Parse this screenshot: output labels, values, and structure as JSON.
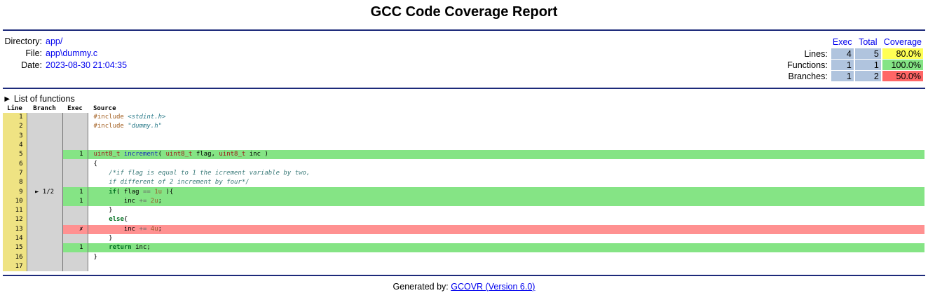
{
  "title": "GCC Code Coverage Report",
  "info": {
    "directory_label": "Directory:",
    "directory": "app/",
    "file_label": "File:",
    "file": "app\\dummy.c",
    "date_label": "Date:",
    "date": "2023-08-30 21:04:35"
  },
  "summary": {
    "headers": {
      "exec": "Exec",
      "total": "Total",
      "coverage": "Coverage"
    },
    "lines": {
      "label": "Lines:",
      "exec": "4",
      "total": "5",
      "coverage": "80.0%",
      "color": "#ffff55"
    },
    "functions": {
      "label": "Functions:",
      "exec": "1",
      "total": "1",
      "coverage": "100.0%",
      "color": "#85e485"
    },
    "branches": {
      "label": "Branches:",
      "exec": "1",
      "total": "2",
      "coverage": "50.0%",
      "color": "#ff6666"
    }
  },
  "functions_toggle": "► List of functions",
  "code_headers": {
    "line": "Line",
    "branch": "Branch",
    "exec": "Exec",
    "source": "Source"
  },
  "code_lines": [
    {
      "n": "1",
      "branch": "",
      "exec": "",
      "status": "none",
      "tokens": [
        [
          "pp",
          "#include "
        ],
        [
          "hdr",
          "<stdint.h>"
        ]
      ]
    },
    {
      "n": "2",
      "branch": "",
      "exec": "",
      "status": "none",
      "tokens": [
        [
          "pp",
          "#include "
        ],
        [
          "hdr",
          "\"dummy.h\""
        ]
      ]
    },
    {
      "n": "3",
      "branch": "",
      "exec": "",
      "status": "none",
      "tokens": []
    },
    {
      "n": "4",
      "branch": "",
      "exec": "",
      "status": "none",
      "tokens": []
    },
    {
      "n": "5",
      "branch": "",
      "exec": "1",
      "status": "covered",
      "tokens": [
        [
          "ty",
          "uint8_t "
        ],
        [
          "fn",
          "increment"
        ],
        [
          "",
          "( "
        ],
        [
          "ty",
          "uint8_t"
        ],
        [
          "",
          " flag, "
        ],
        [
          "ty",
          "uint8_t"
        ],
        [
          "",
          " inc )"
        ]
      ]
    },
    {
      "n": "6",
      "branch": "",
      "exec": "",
      "status": "none",
      "tokens": [
        [
          "",
          "{"
        ]
      ]
    },
    {
      "n": "7",
      "branch": "",
      "exec": "",
      "status": "none",
      "tokens": [
        [
          "",
          "    "
        ],
        [
          "cm",
          "/*if flag is equal to 1 the icrement variable by two,"
        ]
      ]
    },
    {
      "n": "8",
      "branch": "",
      "exec": "",
      "status": "none",
      "tokens": [
        [
          "",
          "    "
        ],
        [
          "cm",
          "if different of 2 increment by four*/"
        ]
      ]
    },
    {
      "n": "9",
      "branch": "► 1/2",
      "exec": "1",
      "status": "covered",
      "tokens": [
        [
          "",
          "    "
        ],
        [
          "kw",
          "if"
        ],
        [
          "",
          "( flag "
        ],
        [
          "op",
          "=="
        ],
        [
          " ",
          ""
        ],
        [
          "nm",
          " 1u"
        ],
        [
          "",
          " ){"
        ]
      ]
    },
    {
      "n": "10",
      "branch": "",
      "exec": "1",
      "status": "covered",
      "tokens": [
        [
          "",
          "        inc "
        ],
        [
          "op",
          "+="
        ],
        [
          "nm",
          " 2u"
        ],
        [
          "",
          ";"
        ]
      ]
    },
    {
      "n": "11",
      "branch": "",
      "exec": "",
      "status": "none",
      "tokens": [
        [
          "",
          "    }"
        ]
      ]
    },
    {
      "n": "12",
      "branch": "",
      "exec": "",
      "status": "none",
      "tokens": [
        [
          "",
          "    "
        ],
        [
          "kw",
          "else"
        ],
        [
          "",
          "{"
        ]
      ]
    },
    {
      "n": "13",
      "branch": "",
      "exec": "✗",
      "status": "uncovered",
      "tokens": [
        [
          "",
          "        inc "
        ],
        [
          "op",
          "+="
        ],
        [
          "nm",
          " 4u"
        ],
        [
          "",
          ";"
        ]
      ]
    },
    {
      "n": "14",
      "branch": "",
      "exec": "",
      "status": "none",
      "tokens": [
        [
          "",
          "    }"
        ]
      ]
    },
    {
      "n": "15",
      "branch": "",
      "exec": "1",
      "status": "covered",
      "tokens": [
        [
          "",
          "    "
        ],
        [
          "kw",
          "return"
        ],
        [
          "",
          " inc;"
        ]
      ]
    },
    {
      "n": "16",
      "branch": "",
      "exec": "",
      "status": "none",
      "tokens": [
        [
          "",
          "}"
        ]
      ]
    },
    {
      "n": "17",
      "branch": "",
      "exec": "",
      "status": "none",
      "tokens": []
    }
  ],
  "footer": {
    "prefix": "Generated by: ",
    "link": "GCOVR (Version 6.0)"
  }
}
